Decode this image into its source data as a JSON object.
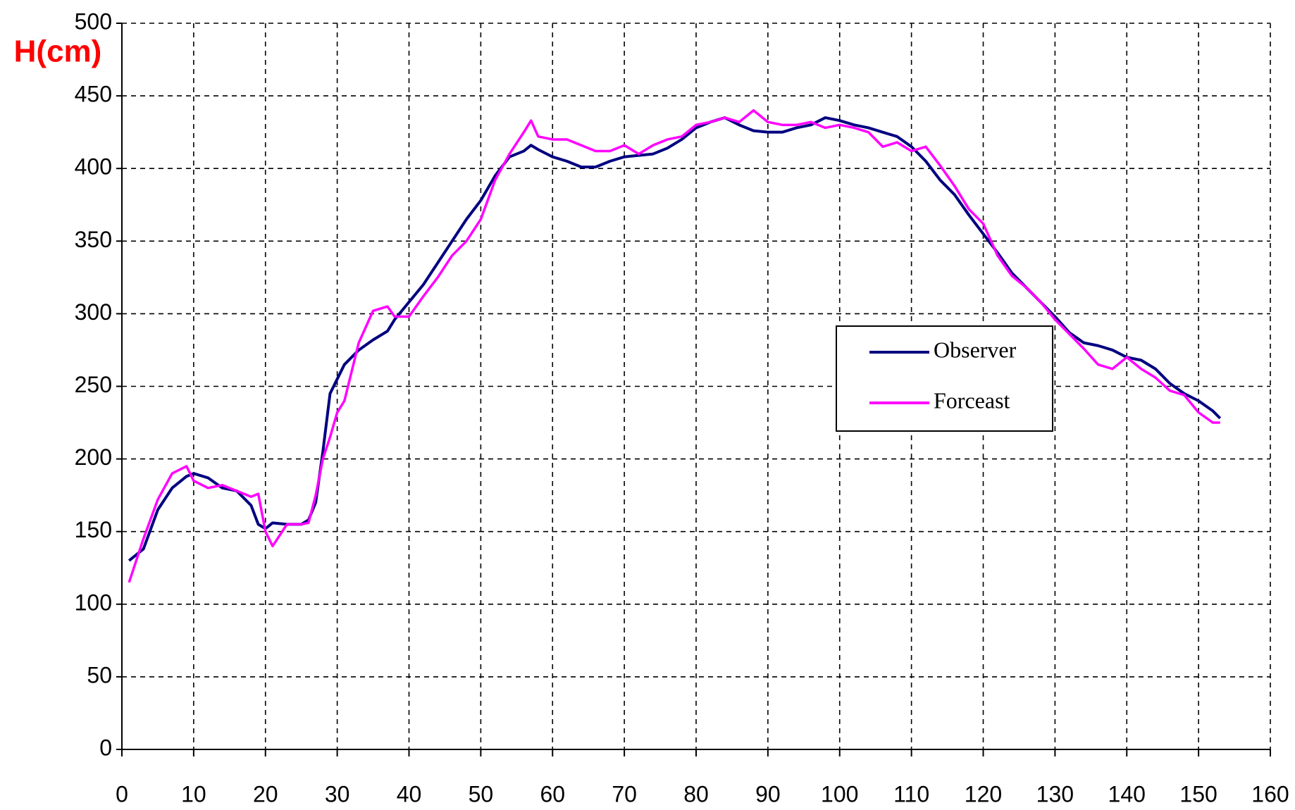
{
  "chart_data": {
    "type": "line",
    "y_label": "H(cm)",
    "x": [
      1,
      3,
      5,
      7,
      9,
      10,
      12,
      14,
      16,
      18,
      19,
      20,
      21,
      23,
      25,
      26,
      27,
      28,
      29,
      30,
      31,
      33,
      35,
      37,
      38,
      40,
      42,
      44,
      46,
      48,
      50,
      52,
      54,
      56,
      57,
      58,
      60,
      62,
      64,
      66,
      68,
      70,
      72,
      74,
      76,
      78,
      80,
      82,
      84,
      86,
      88,
      90,
      92,
      94,
      96,
      98,
      100,
      102,
      104,
      106,
      108,
      110,
      112,
      114,
      116,
      118,
      120,
      122,
      124,
      126,
      128,
      130,
      132,
      134,
      136,
      138,
      140,
      142,
      144,
      146,
      148,
      150,
      152,
      153
    ],
    "series": [
      {
        "name": "Observer",
        "color": "#000080",
        "values": [
          130,
          138,
          165,
          180,
          188,
          190,
          187,
          180,
          178,
          168,
          155,
          152,
          156,
          155,
          155,
          158,
          170,
          205,
          245,
          255,
          265,
          275,
          282,
          288,
          296,
          308,
          320,
          335,
          350,
          365,
          378,
          395,
          408,
          412,
          416,
          413,
          408,
          405,
          401,
          401,
          405,
          408,
          409,
          410,
          414,
          420,
          428,
          432,
          435,
          430,
          426,
          425,
          425,
          428,
          430,
          435,
          433,
          430,
          428,
          425,
          422,
          415,
          405,
          392,
          382,
          368,
          355,
          342,
          328,
          318,
          308,
          298,
          287,
          280,
          278,
          275,
          270,
          268,
          262,
          252,
          245,
          240,
          233,
          228
        ]
      },
      {
        "name": "Forceast",
        "color": "#ff00ff",
        "values": [
          115,
          145,
          172,
          190,
          195,
          185,
          180,
          182,
          178,
          174,
          176,
          150,
          140,
          155,
          155,
          156,
          175,
          200,
          215,
          232,
          240,
          280,
          302,
          305,
          298,
          298,
          312,
          325,
          340,
          350,
          365,
          392,
          410,
          425,
          433,
          422,
          420,
          420,
          416,
          412,
          412,
          416,
          410,
          416,
          420,
          422,
          430,
          432,
          435,
          432,
          440,
          432,
          430,
          430,
          432,
          428,
          430,
          428,
          425,
          415,
          418,
          412,
          415,
          402,
          388,
          372,
          362,
          340,
          326,
          318,
          308,
          296,
          286,
          276,
          265,
          262,
          270,
          262,
          256,
          247,
          244,
          232,
          225,
          225
        ]
      }
    ],
    "xlim": [
      0,
      160
    ],
    "xticks": [
      0,
      10,
      20,
      30,
      40,
      50,
      60,
      70,
      80,
      90,
      100,
      110,
      120,
      130,
      140,
      150,
      160
    ],
    "ylim": [
      0,
      500
    ],
    "yticks": [
      0,
      50,
      100,
      150,
      200,
      250,
      300,
      350,
      400,
      450,
      500
    ],
    "grid": true
  }
}
